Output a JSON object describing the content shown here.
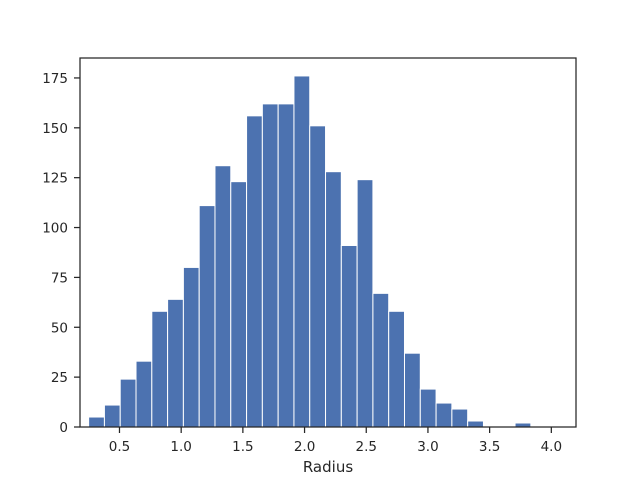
{
  "chart_data": {
    "type": "bar",
    "subtype": "histogram",
    "title": "",
    "xlabel": "Radius",
    "ylabel": "",
    "xlim": [
      0.18,
      4.2
    ],
    "ylim": [
      0,
      185
    ],
    "x_ticks": [
      0.5,
      1.0,
      1.5,
      2.0,
      2.5,
      3.0,
      3.5,
      4.0
    ],
    "x_tick_labels": [
      "0.5",
      "1.0",
      "1.5",
      "2.0",
      "2.5",
      "3.0",
      "3.5",
      "4.0"
    ],
    "y_ticks": [
      0,
      25,
      50,
      75,
      100,
      125,
      150,
      175
    ],
    "y_tick_labels": [
      "0",
      "25",
      "50",
      "75",
      "100",
      "125",
      "150",
      "175"
    ],
    "grid": false,
    "legend": "none",
    "bar_color": "#4c72b0",
    "bin_edges": [
      0.25,
      0.378,
      0.506,
      0.634,
      0.762,
      0.89,
      1.018,
      1.146,
      1.274,
      1.402,
      1.53,
      1.658,
      1.786,
      1.914,
      2.042,
      2.17,
      2.298,
      2.426,
      2.554,
      2.682,
      2.81,
      2.938,
      3.066,
      3.194,
      3.322,
      3.45,
      3.578,
      3.706,
      3.834,
      3.962
    ],
    "values": [
      5,
      11,
      24,
      33,
      58,
      64,
      80,
      111,
      131,
      123,
      156,
      162,
      162,
      176,
      151,
      128,
      91,
      124,
      67,
      58,
      37,
      19,
      12,
      9,
      3,
      0,
      0,
      2,
      0
    ]
  }
}
